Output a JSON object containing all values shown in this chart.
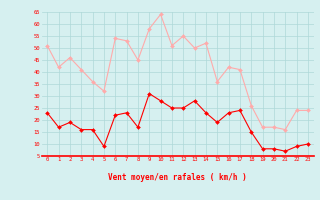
{
  "avg_wind": [
    23,
    17,
    19,
    16,
    16,
    9,
    22,
    23,
    17,
    31,
    28,
    25,
    25,
    28,
    23,
    19,
    23,
    24,
    15,
    8,
    8,
    7,
    9,
    10
  ],
  "gust_wind": [
    51,
    42,
    46,
    41,
    36,
    32,
    54,
    53,
    45,
    58,
    64,
    51,
    55,
    50,
    52,
    36,
    42,
    41,
    26,
    17,
    17,
    16,
    24,
    24
  ],
  "x": [
    0,
    1,
    2,
    3,
    4,
    5,
    6,
    7,
    8,
    9,
    10,
    11,
    12,
    13,
    14,
    15,
    16,
    17,
    18,
    19,
    20,
    21,
    22,
    23
  ],
  "xlabel": "Vent moyen/en rafales ( km/h )",
  "ylim": [
    5,
    65
  ],
  "yticks": [
    5,
    10,
    15,
    20,
    25,
    30,
    35,
    40,
    45,
    50,
    55,
    60,
    65
  ],
  "avg_color": "#ff0000",
  "gust_color": "#ffaaaa",
  "bg_color": "#d6f0f0",
  "grid_color": "#aed8d8",
  "marker_size": 2,
  "linewidth": 0.8
}
